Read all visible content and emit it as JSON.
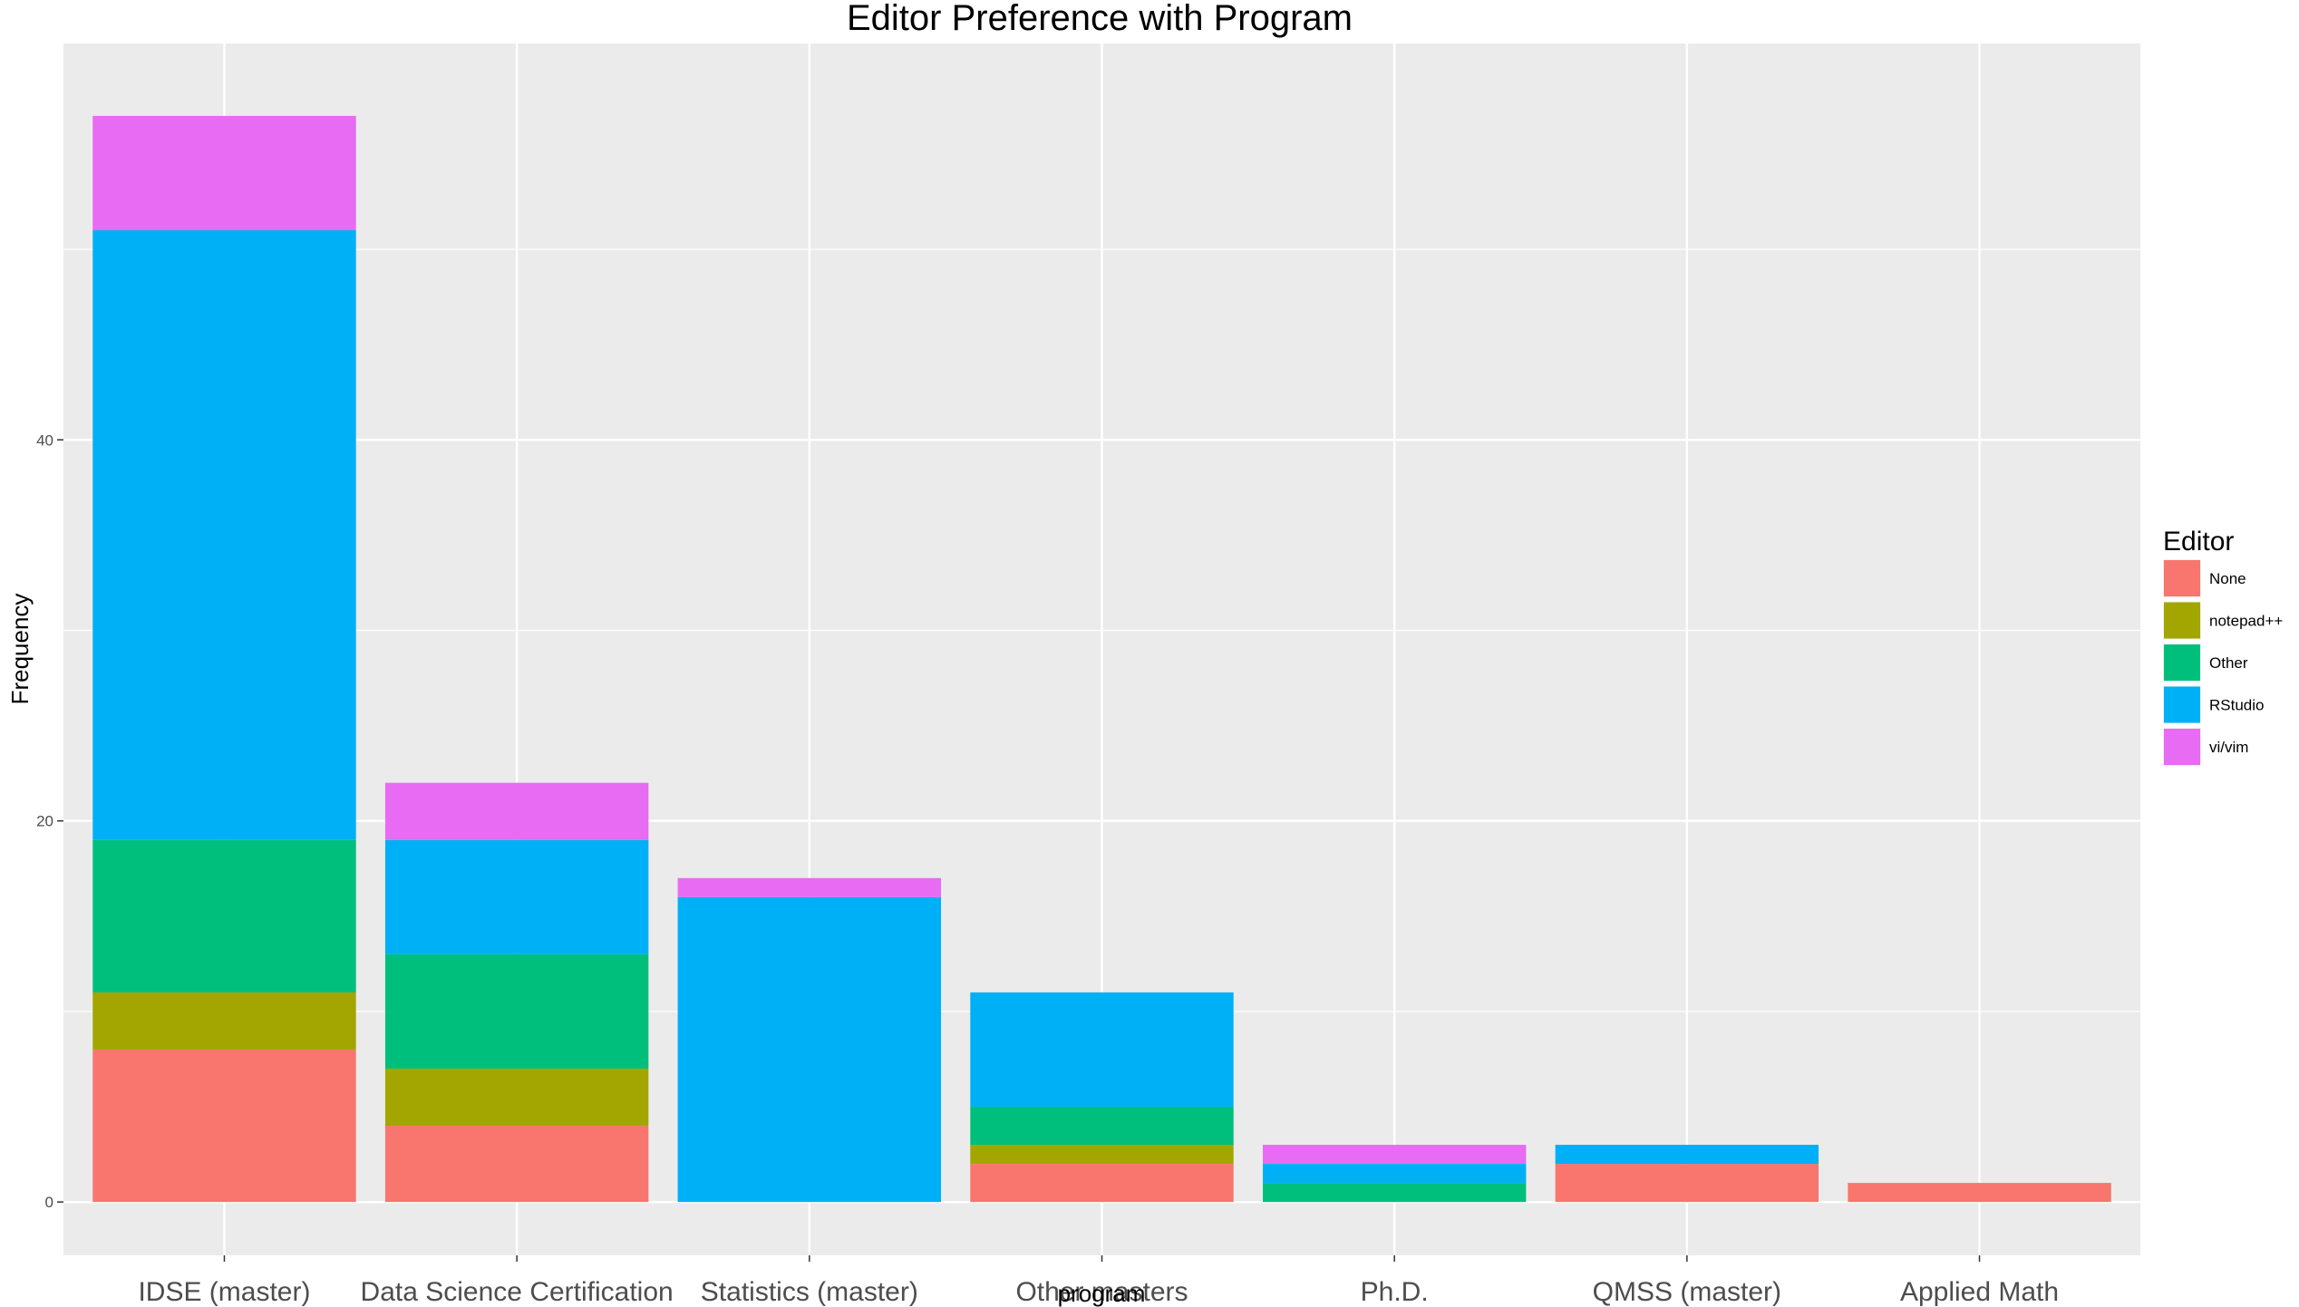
{
  "chart_data": {
    "type": "bar",
    "stacked": true,
    "title": "Editor Preference with Program",
    "xlabel": "program",
    "ylabel": "Frequency",
    "categories": [
      "IDSE (master)",
      "Data Science Certification",
      "Statistics (master)",
      "Other masters",
      "Ph.D.",
      "QMSS (master)",
      "Applied Math"
    ],
    "series": [
      {
        "name": "None",
        "color": "#F8766D",
        "values": [
          8,
          4,
          0,
          2,
          0,
          2,
          1
        ]
      },
      {
        "name": "notepad++",
        "color": "#A3A500",
        "values": [
          3,
          3,
          0,
          1,
          0,
          0,
          0
        ]
      },
      {
        "name": "Other",
        "color": "#00BF7D",
        "values": [
          8,
          6,
          0,
          2,
          1,
          0,
          0
        ]
      },
      {
        "name": "RStudio",
        "color": "#00B0F6",
        "values": [
          32,
          6,
          16,
          6,
          1,
          1,
          0
        ]
      },
      {
        "name": "vi/vim",
        "color": "#E76BF3",
        "values": [
          6,
          3,
          1,
          0,
          1,
          0,
          0
        ]
      }
    ],
    "yticks": [
      0,
      20,
      40
    ],
    "ylim": [
      -2.8,
      60.8
    ],
    "grid": true,
    "legend": {
      "title": "Editor",
      "position": "right"
    },
    "panel_background": "#EBEBEB"
  }
}
